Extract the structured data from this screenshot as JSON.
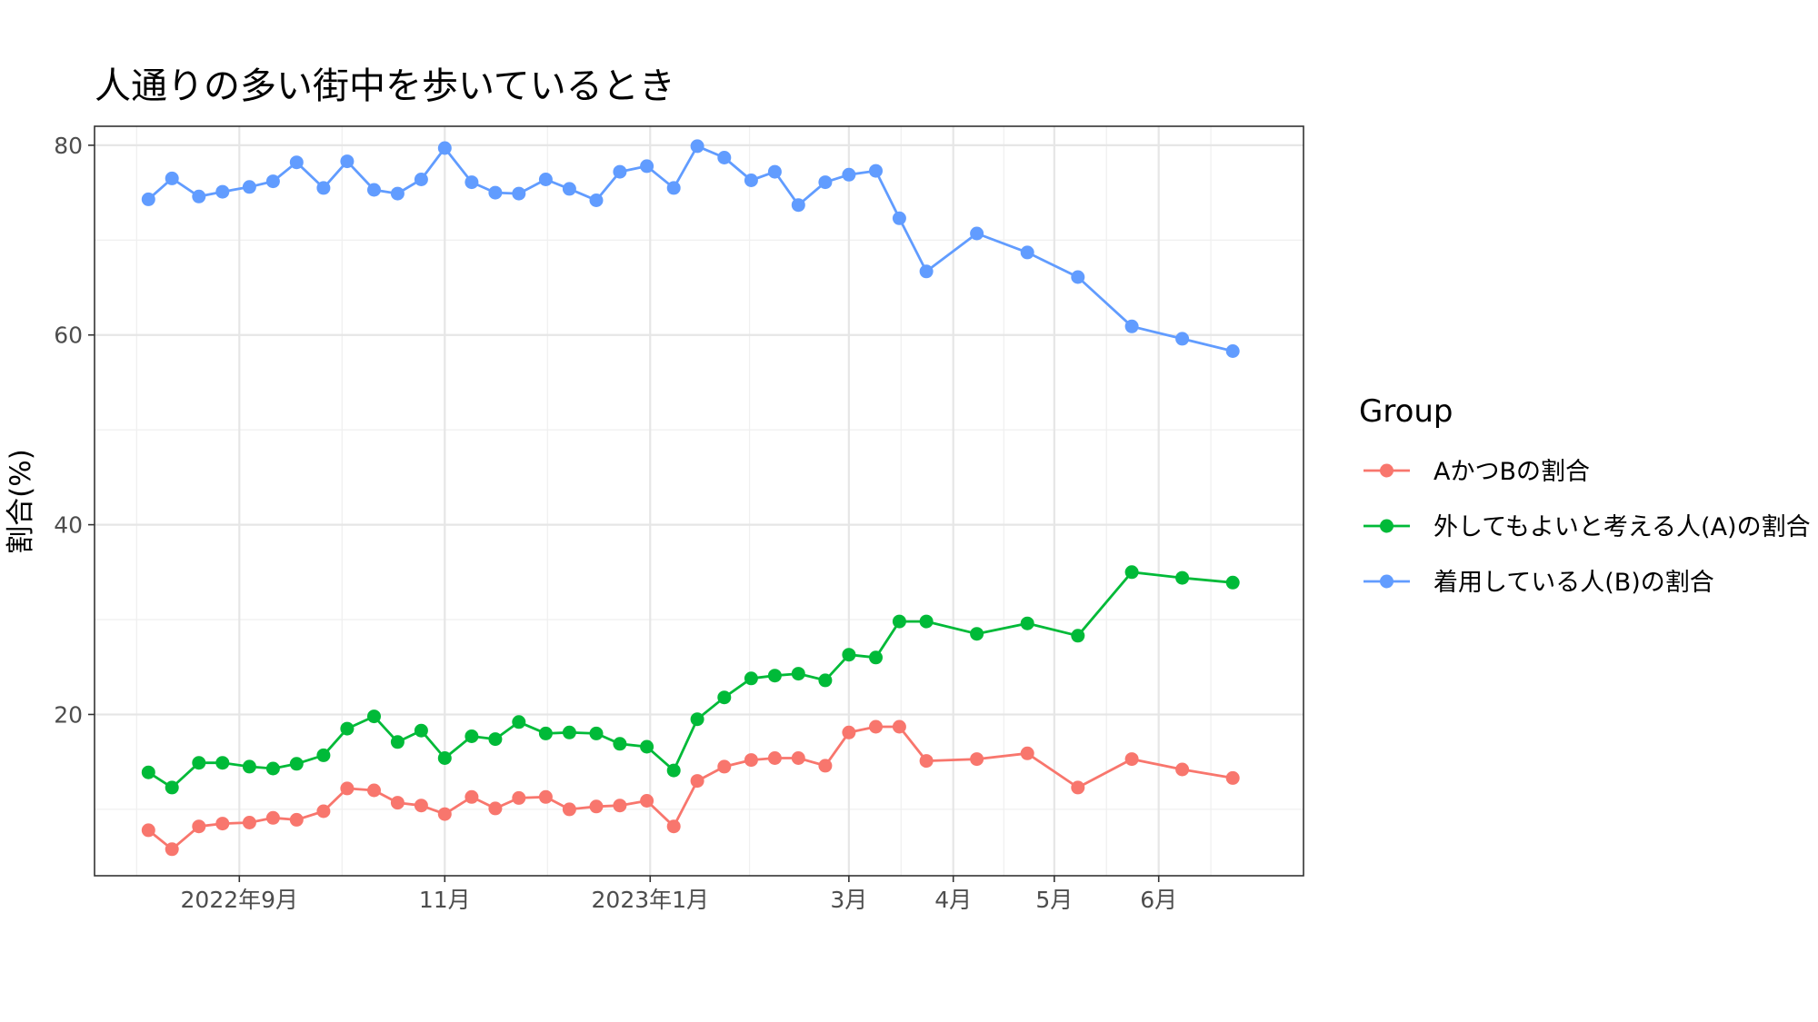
{
  "chart_data": {
    "type": "line",
    "title": "人通りの多い街中を歩いているとき",
    "xlabel": "",
    "ylabel": "割合(%)",
    "ylim": [
      3,
      82
    ],
    "xlim": [
      "2022-07-20",
      "2023-07-14"
    ],
    "y_ticks": [
      20,
      40,
      60,
      80
    ],
    "x_ticks": [
      {
        "date": "2022-09-01",
        "label": "2022年9月"
      },
      {
        "date": "2022-11-01",
        "label": "11月"
      },
      {
        "date": "2023-01-01",
        "label": "2023年1月"
      },
      {
        "date": "2023-03-01",
        "label": "3月"
      },
      {
        "date": "2023-04-01",
        "label": "4月"
      },
      {
        "date": "2023-05-01",
        "label": "5月"
      },
      {
        "date": "2023-06-01",
        "label": "6月"
      }
    ],
    "grid": true,
    "legend": {
      "title": "Group",
      "position": "right"
    },
    "x": [
      "2022-08-05",
      "2022-08-12",
      "2022-08-20",
      "2022-08-27",
      "2022-09-04",
      "2022-09-11",
      "2022-09-18",
      "2022-09-26",
      "2022-10-03",
      "2022-10-11",
      "2022-10-18",
      "2022-10-25",
      "2022-11-01",
      "2022-11-09",
      "2022-11-16",
      "2022-11-23",
      "2022-12-01",
      "2022-12-08",
      "2022-12-16",
      "2022-12-23",
      "2022-12-31",
      "2023-01-08",
      "2023-01-15",
      "2023-01-23",
      "2023-01-31",
      "2023-02-07",
      "2023-02-14",
      "2023-02-22",
      "2023-03-01",
      "2023-03-09",
      "2023-03-16",
      "2023-03-24",
      "2023-04-08",
      "2023-04-23",
      "2023-05-08",
      "2023-05-24",
      "2023-06-08",
      "2023-06-23"
    ],
    "series": [
      {
        "name": "AかつBの割合",
        "color": "#F8766D",
        "values": [
          7.8,
          5.8,
          8.2,
          8.5,
          8.6,
          9.1,
          8.9,
          9.8,
          12.2,
          12.0,
          10.7,
          10.4,
          9.5,
          11.3,
          10.1,
          11.2,
          11.3,
          10.0,
          10.3,
          10.4,
          10.9,
          8.2,
          13.0,
          14.5,
          15.2,
          15.4,
          15.4,
          14.6,
          18.1,
          18.7,
          18.7,
          15.1,
          15.3,
          15.9,
          12.3,
          15.3,
          14.2,
          13.3
        ]
      },
      {
        "name": "外してもよいと考える人(A)の割合",
        "color": "#00BA38",
        "values": [
          13.9,
          12.3,
          14.9,
          14.9,
          14.5,
          14.3,
          14.8,
          15.7,
          18.5,
          19.8,
          17.1,
          18.3,
          15.4,
          17.7,
          17.4,
          19.2,
          18.0,
          18.1,
          18.0,
          16.9,
          16.6,
          14.1,
          19.5,
          21.8,
          23.8,
          24.1,
          24.3,
          23.6,
          26.3,
          26.0,
          29.8,
          29.8,
          28.5,
          29.6,
          28.3,
          35.0,
          34.4,
          33.9
        ]
      },
      {
        "name": "着用している人(B)の割合",
        "color": "#619CFF",
        "values": [
          74.3,
          76.5,
          74.6,
          75.1,
          75.6,
          76.2,
          78.2,
          75.5,
          78.3,
          75.3,
          74.9,
          76.4,
          79.7,
          76.1,
          75.0,
          74.9,
          76.4,
          75.4,
          74.2,
          77.2,
          77.8,
          75.5,
          79.9,
          78.7,
          76.3,
          77.2,
          73.7,
          76.1,
          76.9,
          77.3,
          72.3,
          66.7,
          70.7,
          68.7,
          66.1,
          60.9,
          59.6,
          58.3
        ]
      }
    ]
  }
}
